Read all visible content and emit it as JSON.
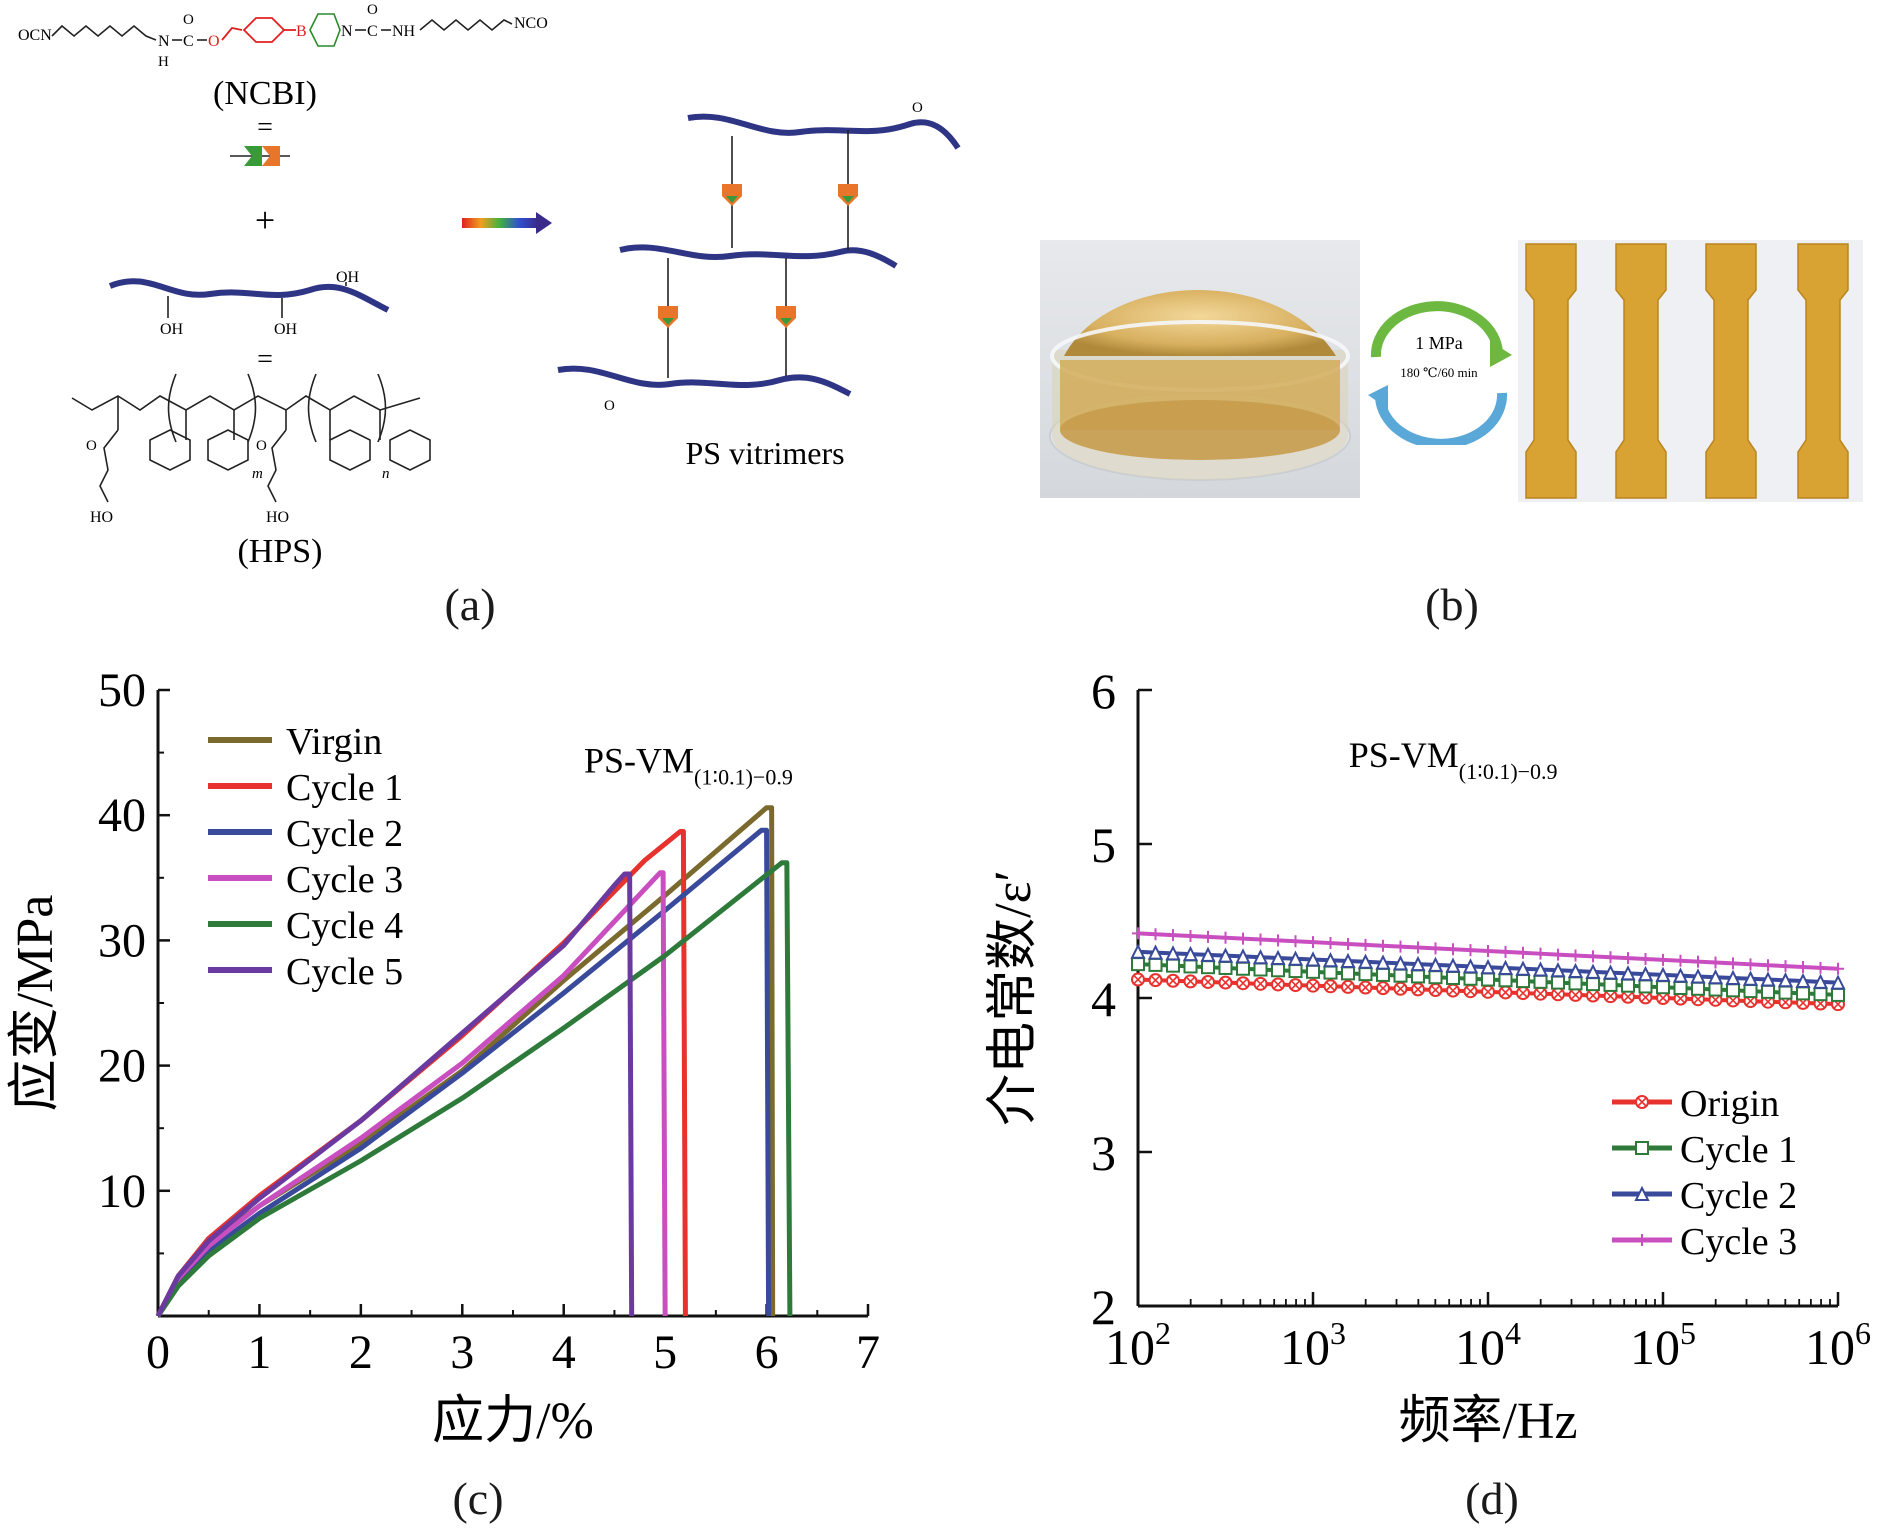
{
  "panels": {
    "a": {
      "label": "(a)",
      "ncbi_label": "(NCBI)",
      "hps_label": "(HPS)",
      "product_label": "PS vitrimers",
      "equals": "=",
      "plus": "+",
      "chem_ocn": "OCN",
      "chem_nco": "NCO",
      "chem_nh": "NH",
      "chem_n": "N",
      "chem_h": "H",
      "chem_o": "O",
      "chem_c": "C",
      "chem_b": "B",
      "chem_oh": "OH",
      "chem_ho": "HO",
      "sub_m": "m",
      "sub_n": "n"
    },
    "b": {
      "label": "(b)",
      "pressure": "1 MPa",
      "condition": "180 ℃/60 min"
    },
    "c": {
      "label": "(c)"
    },
    "d": {
      "label": "(d)"
    }
  },
  "colors": {
    "virgin": "#7a6a2e",
    "cycle1": "#e8322e",
    "cycle2": "#3a4a9a",
    "cycle3": "#c94fc0",
    "cycle4": "#2e7a3a",
    "cycle5": "#6a3aa0",
    "d_origin": "#e8322e",
    "d_cycle1": "#2e7a3a",
    "d_cycle2": "#3a4a9a",
    "d_cycle3": "#c94fc0",
    "chain": "#2f3585",
    "linker_orange": "#e8752a",
    "linker_green": "#3a9a3a",
    "red_bond": "#e02020"
  },
  "chart_data": [
    {
      "id": "c",
      "type": "line",
      "xlabel": "应力/%",
      "ylabel": "应变/MPa",
      "annotation": {
        "main": "PS-VM",
        "sub": "(1∶0.1)−0.9"
      },
      "xlim": [
        0,
        7
      ],
      "ylim": [
        0,
        50
      ],
      "xticks": [
        "0",
        "1",
        "2",
        "3",
        "4",
        "5",
        "6",
        "7"
      ],
      "yticks": [
        "10",
        "20",
        "30",
        "40",
        "50"
      ],
      "legend_position": "top-left",
      "series": [
        {
          "name": "Virgin",
          "color_key": "virgin",
          "points": [
            [
              0,
              0
            ],
            [
              0.2,
              3
            ],
            [
              0.5,
              5.8
            ],
            [
              1,
              8.8
            ],
            [
              2,
              13.8
            ],
            [
              3,
              19.6
            ],
            [
              4,
              26.8
            ],
            [
              5,
              33.6
            ],
            [
              6,
              40.6
            ],
            [
              6.05,
              40.6
            ],
            [
              6.06,
              0
            ]
          ]
        },
        {
          "name": "Cycle 1",
          "color_key": "cycle1",
          "points": [
            [
              0,
              0
            ],
            [
              0.2,
              3.2
            ],
            [
              0.5,
              6.2
            ],
            [
              1,
              9.6
            ],
            [
              2,
              15.6
            ],
            [
              3,
              22.4
            ],
            [
              4,
              29.8
            ],
            [
              4.8,
              36.4
            ],
            [
              5.15,
              38.7
            ],
            [
              5.18,
              38.7
            ],
            [
              5.2,
              0
            ]
          ]
        },
        {
          "name": "Cycle 2",
          "color_key": "cycle2",
          "points": [
            [
              0,
              0
            ],
            [
              0.2,
              2.8
            ],
            [
              0.5,
              5.2
            ],
            [
              1,
              8.2
            ],
            [
              2,
              13.4
            ],
            [
              3,
              19.4
            ],
            [
              4,
              25.8
            ],
            [
              5,
              32.4
            ],
            [
              5.95,
              38.8
            ],
            [
              6.0,
              38.8
            ],
            [
              6.02,
              0
            ]
          ]
        },
        {
          "name": "Cycle 3",
          "color_key": "cycle3",
          "points": [
            [
              0,
              0
            ],
            [
              0.2,
              3
            ],
            [
              0.5,
              5.6
            ],
            [
              1,
              8.8
            ],
            [
              2,
              14.2
            ],
            [
              3,
              20.2
            ],
            [
              4,
              27.2
            ],
            [
              4.95,
              35.4
            ],
            [
              4.98,
              35.4
            ],
            [
              5.0,
              0
            ]
          ]
        },
        {
          "name": "Cycle 4",
          "color_key": "cycle4",
          "points": [
            [
              0,
              0
            ],
            [
              0.2,
              2.4
            ],
            [
              0.5,
              4.8
            ],
            [
              1,
              7.8
            ],
            [
              2,
              12.4
            ],
            [
              3,
              17.4
            ],
            [
              4,
              23
            ],
            [
              5,
              28.8
            ],
            [
              6.15,
              36.2
            ],
            [
              6.2,
              36.2
            ],
            [
              6.23,
              0
            ]
          ]
        },
        {
          "name": "Cycle 5",
          "color_key": "cycle5",
          "points": [
            [
              0,
              0
            ],
            [
              0.2,
              3.2
            ],
            [
              0.5,
              6
            ],
            [
              1,
              9.4
            ],
            [
              2,
              15.6
            ],
            [
              3,
              22.6
            ],
            [
              4,
              29.6
            ],
            [
              4.5,
              34.4
            ],
            [
              4.6,
              35.3
            ],
            [
              4.65,
              35.3
            ],
            [
              4.67,
              0
            ]
          ]
        }
      ]
    },
    {
      "id": "d",
      "type": "line",
      "xlabel": "频率/Hz",
      "ylabel": "介电常数/ε′",
      "annotation": {
        "main": "PS-VM",
        "sub": "(1∶0.1)−0.9"
      },
      "xscale": "log",
      "xlim": [
        100,
        1000000
      ],
      "ylim": [
        2,
        6
      ],
      "xticks": [
        {
          "base": "10",
          "exp": "2"
        },
        {
          "base": "10",
          "exp": "3"
        },
        {
          "base": "10",
          "exp": "4"
        },
        {
          "base": "10",
          "exp": "5"
        },
        {
          "base": "10",
          "exp": "6"
        }
      ],
      "yticks": [
        "2",
        "3",
        "4",
        "5",
        "6"
      ],
      "legend_position": "bottom-right",
      "series": [
        {
          "name": "Origin",
          "color_key": "d_origin",
          "marker": "x-circle",
          "y_start": 4.12,
          "y_end": 3.96
        },
        {
          "name": "Cycle 1",
          "color_key": "d_cycle1",
          "marker": "square",
          "y_start": 4.22,
          "y_end": 4.02
        },
        {
          "name": "Cycle 2",
          "color_key": "d_cycle2",
          "marker": "triangle",
          "y_start": 4.3,
          "y_end": 4.1
        },
        {
          "name": "Cycle 3",
          "color_key": "d_cycle3",
          "marker": "cross",
          "y_start": 4.42,
          "y_end": 4.19
        }
      ]
    }
  ]
}
